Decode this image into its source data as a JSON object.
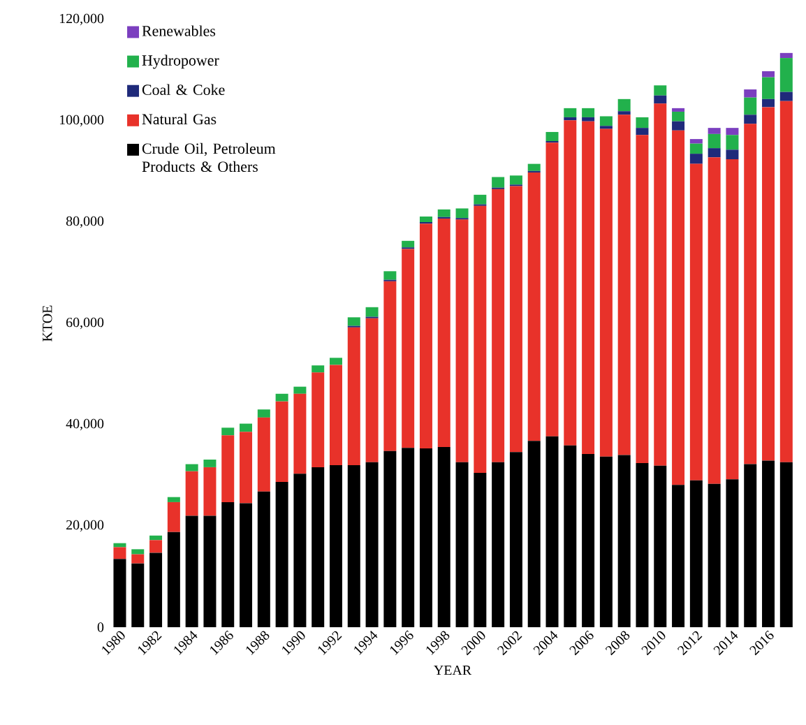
{
  "chart_data": {
    "type": "bar",
    "stacked": true,
    "xlabel": "YEAR",
    "ylabel": "KTOE",
    "categories": [
      "1980",
      null,
      "1982",
      null,
      "1984",
      null,
      "1986",
      null,
      "1988",
      null,
      "1990",
      null,
      "1992",
      null,
      "1994",
      null,
      "1996",
      null,
      "1998",
      null,
      "2000",
      null,
      "2002",
      null,
      "2004",
      null,
      "2006",
      null,
      "2008",
      null,
      "2010",
      null,
      "2012",
      null,
      "2014",
      null,
      "2016",
      null
    ],
    "series": [
      {
        "name": "Crude Oil, Petroleum Products & Others",
        "color": "#000000",
        "values": [
          13500,
          12600,
          14700,
          18800,
          22000,
          22000,
          24700,
          24500,
          26800,
          28700,
          30300,
          31600,
          32000,
          32000,
          32600,
          34800,
          35400,
          35300,
          35600,
          32600,
          30500,
          32600,
          34600,
          36800,
          37700,
          35900,
          34200,
          33700,
          34000,
          32400,
          31900,
          28100,
          29000,
          28300,
          29200,
          32200,
          32900,
          32600
        ]
      },
      {
        "name": "Natural Gas",
        "color": "#e8322a",
        "values": [
          2300,
          1800,
          2500,
          5900,
          8800,
          9600,
          13200,
          14100,
          14600,
          15900,
          15800,
          18700,
          19800,
          27200,
          28400,
          33500,
          39300,
          44400,
          45100,
          47900,
          52700,
          53900,
          52500,
          53000,
          58000,
          64200,
          65700,
          64700,
          67200,
          64800,
          71500,
          70000,
          62500,
          64500,
          63200,
          67200,
          69800,
          71300
        ]
      },
      {
        "name": "Coal & Coke",
        "color": "#1f2a7a",
        "values": [
          null,
          null,
          null,
          null,
          null,
          null,
          null,
          null,
          null,
          null,
          null,
          null,
          null,
          300,
          300,
          300,
          300,
          300,
          300,
          300,
          300,
          300,
          300,
          300,
          300,
          600,
          800,
          600,
          700,
          1400,
          1600,
          1800,
          2000,
          1800,
          1900,
          1800,
          1600,
          1800
        ]
      },
      {
        "name": "Hydropower",
        "color": "#22b14c",
        "values": [
          800,
          1000,
          900,
          1000,
          1400,
          1500,
          1500,
          1600,
          1600,
          1500,
          1400,
          1400,
          1400,
          1700,
          1900,
          1700,
          1300,
          1100,
          1500,
          1900,
          1900,
          2100,
          1800,
          1400,
          1800,
          1800,
          1800,
          1900,
          2400,
          2100,
          2000,
          1900,
          2000,
          2800,
          2900,
          3400,
          4300,
          6700
        ]
      },
      {
        "name": "Renewables",
        "color": "#7b3fbf",
        "values": [
          null,
          null,
          null,
          null,
          null,
          null,
          null,
          null,
          null,
          null,
          null,
          null,
          null,
          null,
          null,
          null,
          null,
          null,
          null,
          null,
          null,
          null,
          null,
          null,
          null,
          null,
          null,
          null,
          null,
          null,
          null,
          700,
          900,
          1200,
          1400,
          1600,
          1200,
          1000
        ]
      }
    ],
    "ylim": [
      0,
      120000
    ],
    "yticks": [
      0,
      {
        "value": 20000,
        "label": "20,000"
      },
      {
        "value": 40000,
        "label": "40,000"
      },
      {
        "value": 60000,
        "label": "60,000"
      },
      {
        "value": 80000,
        "label": "80,000"
      },
      {
        "value": 100000,
        "label": "100,000"
      },
      {
        "value": 120000,
        "label": "120,000"
      }
    ],
    "legend": "top left"
  }
}
